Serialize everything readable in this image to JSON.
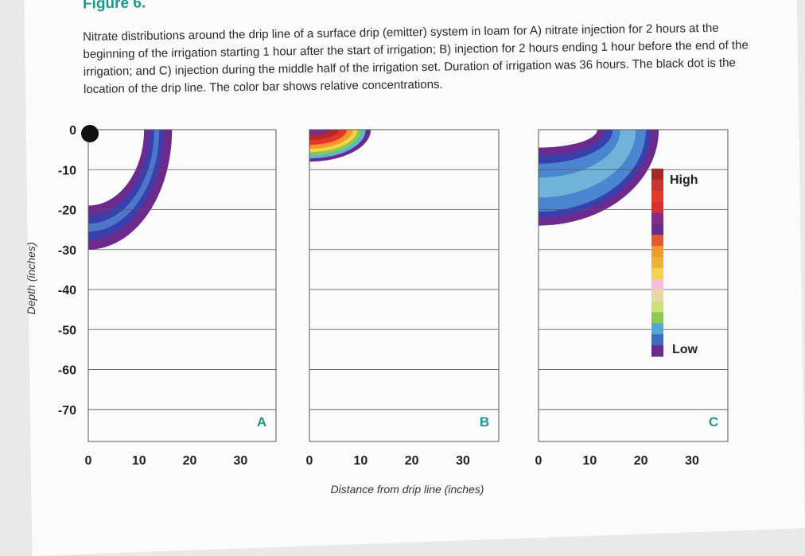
{
  "figure": {
    "heading": "Figure 6.",
    "caption": "Nitrate distributions around the drip line of a surface drip (emitter) system in loam for A) nitrate injection for 2 hours at the beginning of the irrigation starting 1 hour after the start of irrigation; B) injection for 2 hours ending 1 hour before the end of the irrigation; and C) injection during the middle half of the irrigation set. Duration of irrigation was 36 hours. The black dot is the location of the drip line. The color bar shows relative concentrations."
  },
  "chart_data": {
    "type": "heatmap",
    "xlabel": "Distance from drip line (inches)",
    "ylabel": "Depth (inches)",
    "xlim": [
      0,
      37
    ],
    "ylim": [
      -78,
      0
    ],
    "x_ticks": [
      "0",
      "10",
      "20",
      "30"
    ],
    "x_tick_values": [
      0,
      10,
      20,
      30
    ],
    "y_ticks": [
      "0",
      "-10",
      "-20",
      "-30",
      "-40",
      "-50",
      "-60",
      "-70"
    ],
    "y_tick_values": [
      0,
      -10,
      -20,
      -30,
      -40,
      -50,
      -60,
      -70
    ],
    "gridlines": "horizontal",
    "drip_line": {
      "x": 0,
      "y": 0,
      "color": "#111111"
    },
    "panels": [
      {
        "label": "A",
        "bands": [
          {
            "rx": 16.5,
            "ry": 30,
            "color": "#6b2a8c"
          },
          {
            "rx": 14.8,
            "ry": 27.5,
            "color": "#3a3fae"
          },
          {
            "rx": 14.0,
            "ry": 25.5,
            "color": "#4d78c8"
          },
          {
            "rx": 13.0,
            "ry": 23.5,
            "color": "#3a3fae"
          },
          {
            "rx": 12.0,
            "ry": 21.5,
            "color": "#6b2a8c"
          },
          {
            "rx": 11.0,
            "ry": 19.0,
            "color": "#fbfbfb"
          }
        ]
      },
      {
        "label": "B",
        "bands": [
          {
            "rx": 12.0,
            "ry": 8.0,
            "color": "#6b2a8c"
          },
          {
            "rx": 11.0,
            "ry": 7.2,
            "color": "#58b6d6"
          },
          {
            "rx": 10.2,
            "ry": 6.4,
            "color": "#8cc84f"
          },
          {
            "rx": 9.4,
            "ry": 5.6,
            "color": "#f3d34a"
          },
          {
            "rx": 8.5,
            "ry": 4.8,
            "color": "#f39a2b"
          },
          {
            "rx": 7.3,
            "ry": 3.8,
            "color": "#e8352c"
          },
          {
            "rx": 5.8,
            "ry": 2.6,
            "color": "#b32a26"
          },
          {
            "rx": 4.0,
            "ry": 1.4,
            "color": "#7e2a86"
          }
        ]
      },
      {
        "label": "C",
        "bands": [
          {
            "rx": 23.5,
            "ry": 24.0,
            "color": "#6b2a8c"
          },
          {
            "rx": 22.0,
            "ry": 22.0,
            "color": "#3a3fae"
          },
          {
            "rx": 21.0,
            "ry": 20.5,
            "color": "#4a86cf"
          },
          {
            "rx": 19.0,
            "ry": 17.0,
            "color": "#6fb3d8"
          },
          {
            "rx": 16.0,
            "ry": 12.0,
            "color": "#4a86cf"
          },
          {
            "rx": 14.5,
            "ry": 8.5,
            "color": "#3a3fae"
          },
          {
            "rx": 13.0,
            "ry": 6.5,
            "color": "#6b2a8c"
          },
          {
            "rx": 11.5,
            "ry": 4.5,
            "color": "#fbfbfb"
          }
        ]
      }
    ],
    "colorbar": {
      "high_label": "High",
      "low_label": "Low",
      "colors": [
        "#a52a26",
        "#c8352c",
        "#e8382c",
        "#d83030",
        "#8a2a8a",
        "#6b2a8c",
        "#e45a2e",
        "#f39a2b",
        "#f0b13a",
        "#f3d34a",
        "#f4c0d6",
        "#e9d7a5",
        "#cbe07a",
        "#8cc84f",
        "#4fa8d8",
        "#3a6ec4",
        "#6b2a8c"
      ]
    }
  }
}
